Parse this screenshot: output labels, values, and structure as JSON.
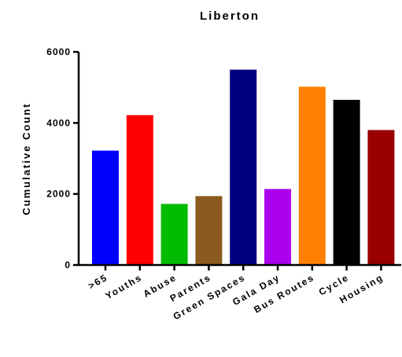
{
  "chart_data": {
    "type": "bar",
    "title": "Liberton",
    "xlabel": "",
    "ylabel": "Cumulative Count",
    "ylim": [
      0,
      6000
    ],
    "yticks": [
      0,
      2000,
      4000,
      6000
    ],
    "categories": [
      ">65",
      "Youths",
      "Abuse",
      "Parents",
      "Green Spaces",
      "Gala Day",
      "Bus Routes",
      "Cycle",
      "Housing"
    ],
    "values": [
      3220,
      4220,
      1720,
      1940,
      5500,
      2140,
      5020,
      4650,
      3800
    ],
    "colors": [
      "#0000ff",
      "#ff0000",
      "#00bb00",
      "#8b5a1e",
      "#000080",
      "#aa00ee",
      "#ff8000",
      "#000000",
      "#990000"
    ],
    "grid": false,
    "legend": "none"
  }
}
